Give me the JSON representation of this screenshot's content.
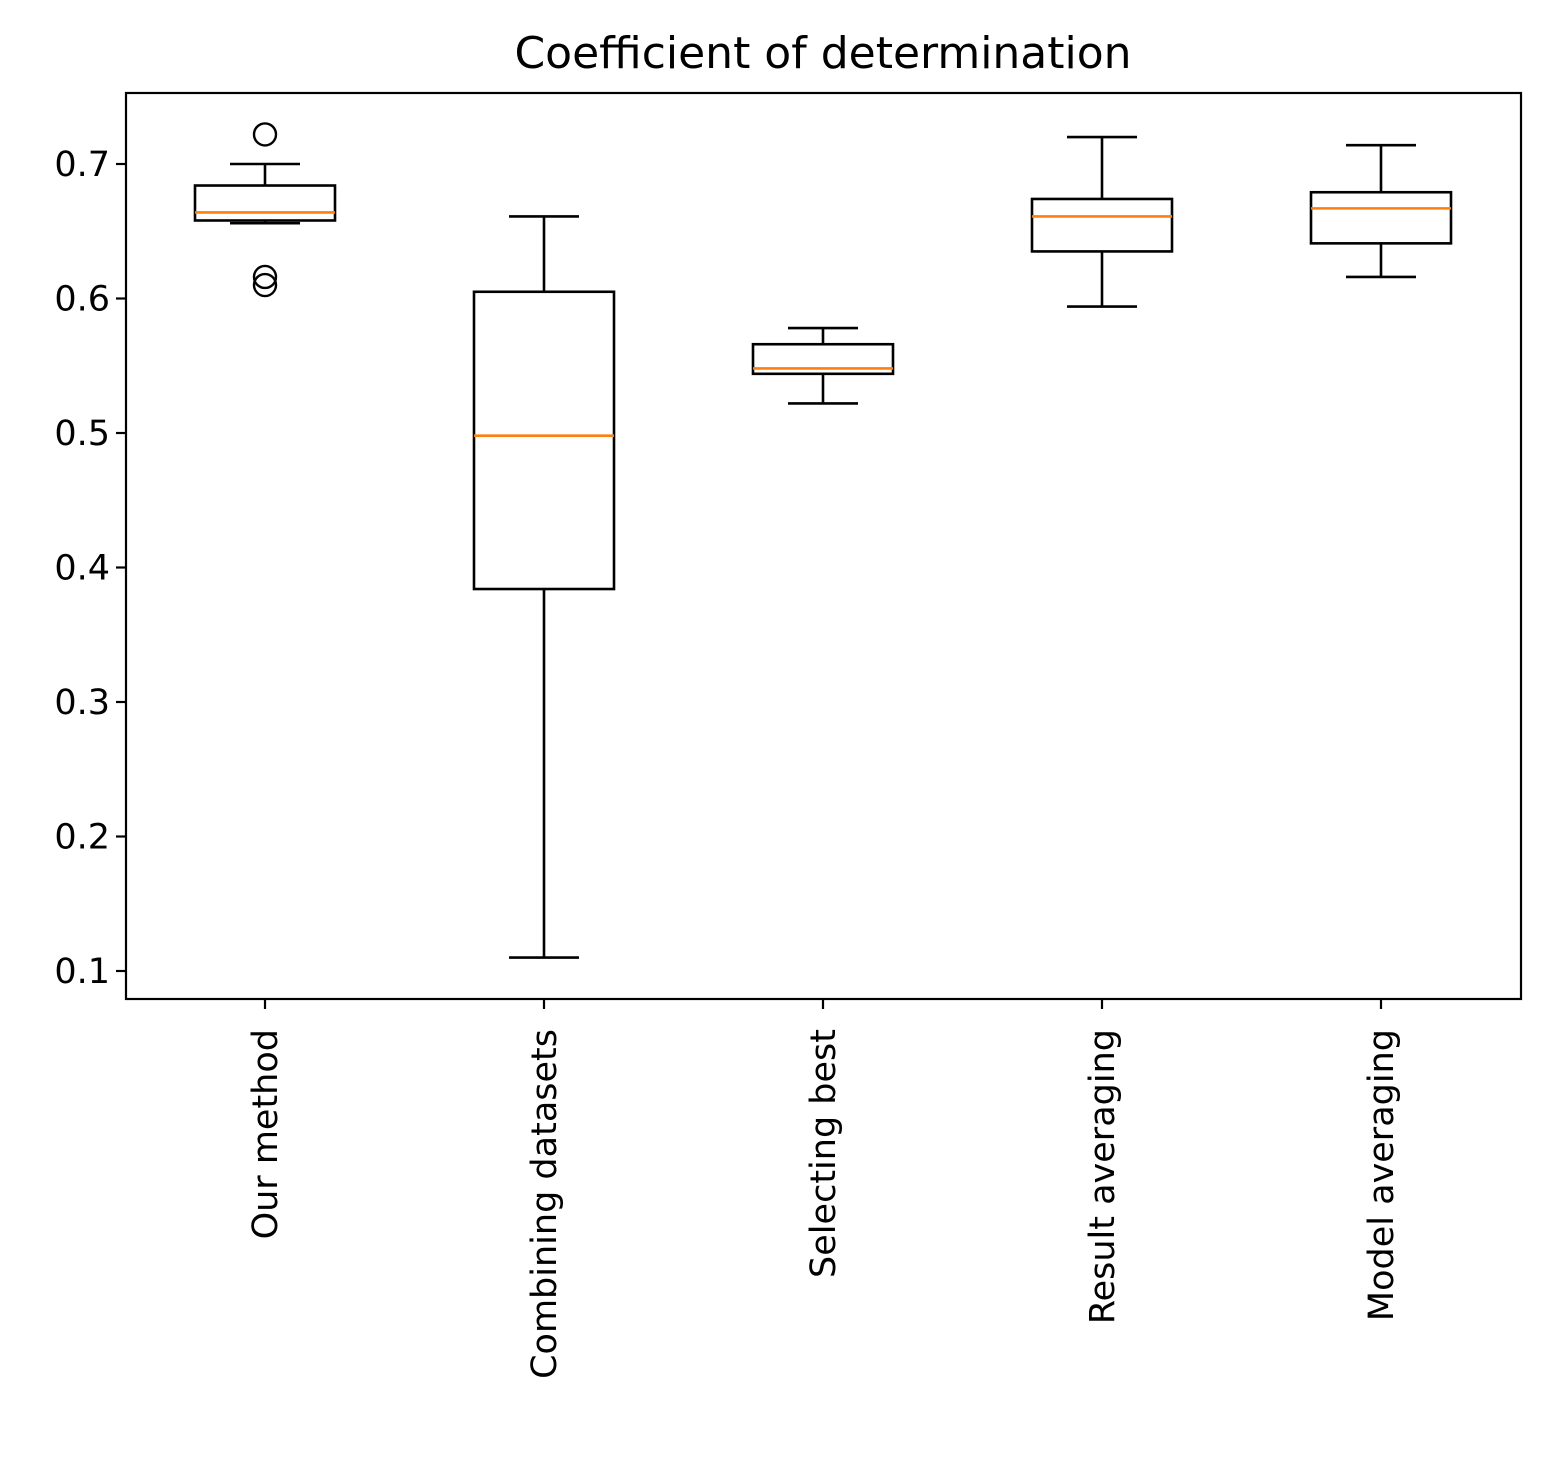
{
  "chart_data": {
    "type": "box",
    "title": "Coefficient of determination",
    "xlabel": "",
    "ylabel": "",
    "ylim": [
      0.079,
      0.754
    ],
    "yticks": [
      0.1,
      0.2,
      0.3,
      0.4,
      0.5,
      0.6,
      0.7
    ],
    "ytick_labels": [
      "0.1",
      "0.2",
      "0.3",
      "0.4",
      "0.5",
      "0.6",
      "0.7"
    ],
    "categories": [
      "Our method",
      "Combining datasets",
      "Selecting best",
      "Result averaging",
      "Model averaging"
    ],
    "grid": false,
    "legend": "none",
    "box_color": "#000000",
    "median_color": "#ff7f0e",
    "boxes": [
      {
        "label": "Our method",
        "whisker_low": 0.656,
        "q1": 0.658,
        "median": 0.664,
        "q3": 0.684,
        "whisker_high": 0.7,
        "outliers": [
          0.722,
          0.616,
          0.61
        ]
      },
      {
        "label": "Combining datasets",
        "whisker_low": 0.11,
        "q1": 0.384,
        "median": 0.498,
        "q3": 0.605,
        "whisker_high": 0.661,
        "outliers": []
      },
      {
        "label": "Selecting best",
        "whisker_low": 0.522,
        "q1": 0.544,
        "median": 0.548,
        "q3": 0.566,
        "whisker_high": 0.578,
        "outliers": []
      },
      {
        "label": "Result averaging",
        "whisker_low": 0.594,
        "q1": 0.635,
        "median": 0.661,
        "q3": 0.674,
        "whisker_high": 0.72,
        "outliers": []
      },
      {
        "label": "Model averaging",
        "whisker_low": 0.616,
        "q1": 0.641,
        "median": 0.667,
        "q3": 0.679,
        "whisker_high": 0.714,
        "outliers": []
      }
    ]
  }
}
